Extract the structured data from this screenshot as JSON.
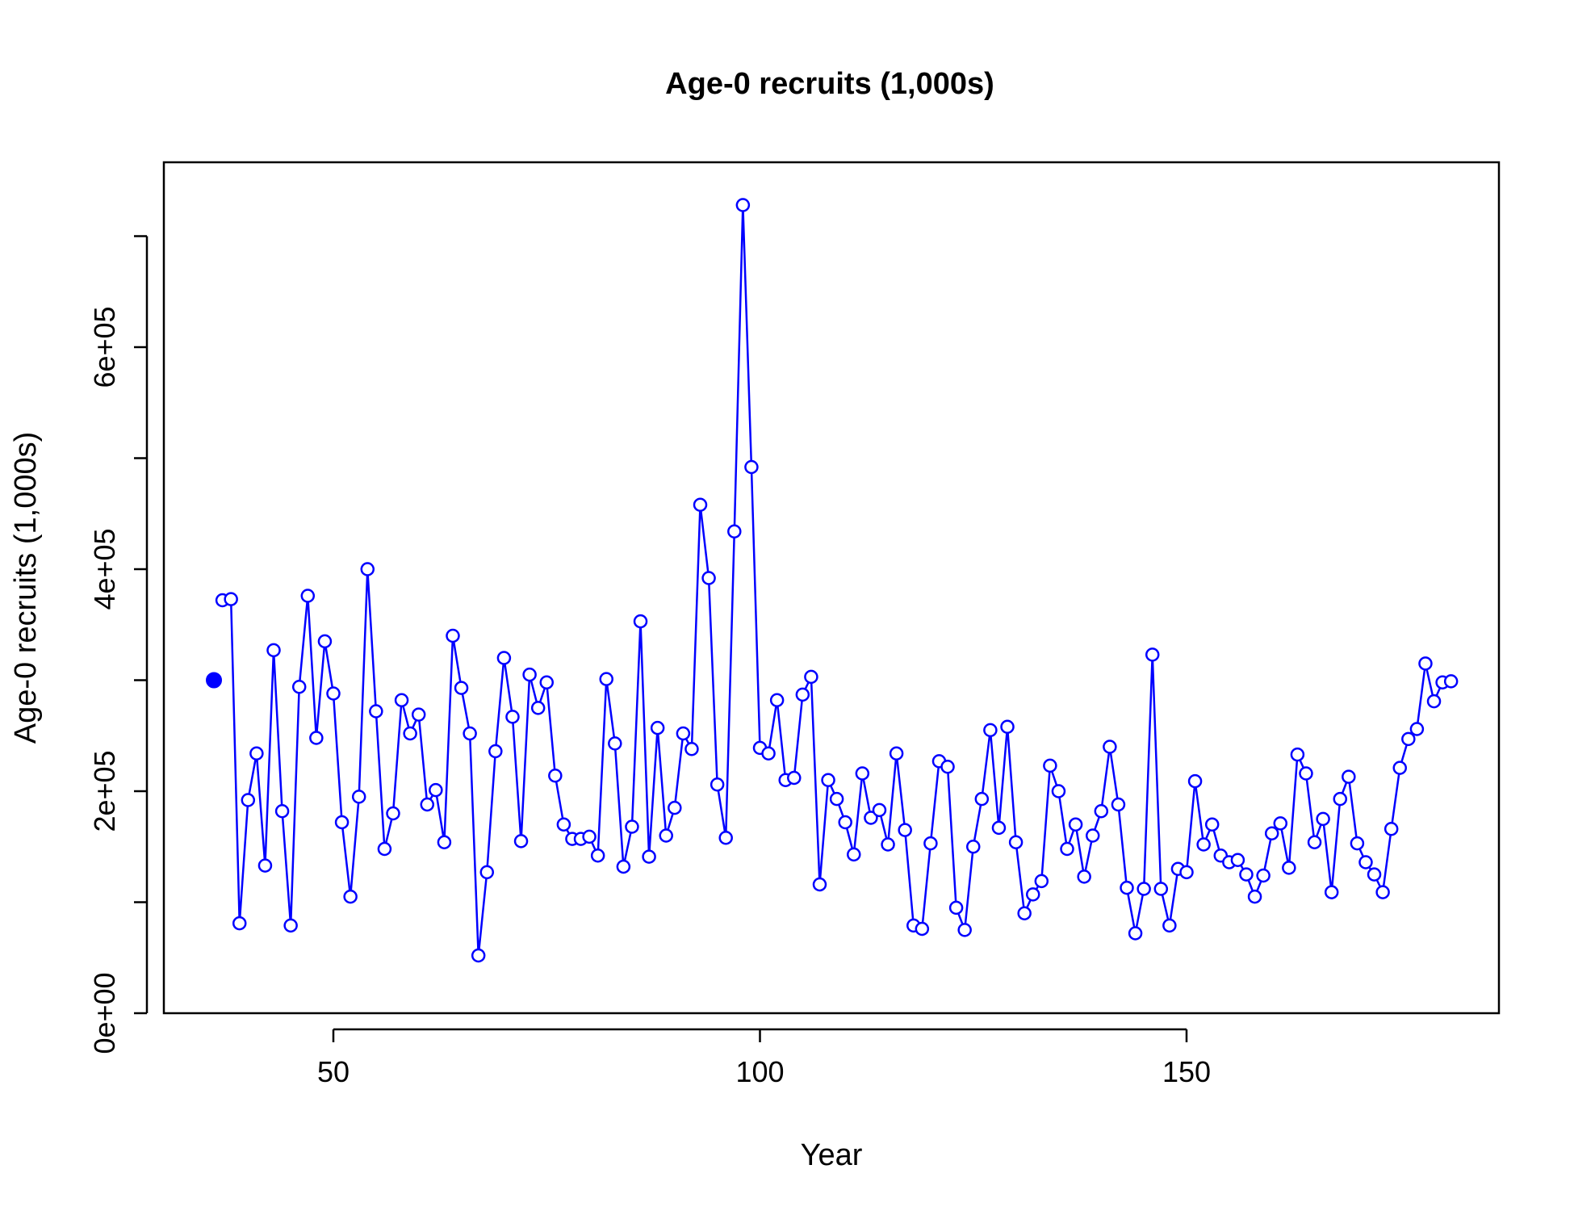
{
  "chart_data": {
    "type": "line",
    "title": "Age-0 recruits (1,000s)",
    "xlabel": "Year",
    "ylabel": "Age-0 recruits (1,000s)",
    "xlim": [
      30,
      187
    ],
    "ylim": [
      0,
      700000
    ],
    "x_ticks": [
      50,
      100,
      150
    ],
    "x_tick_labels": [
      "50",
      "100",
      "150"
    ],
    "y_ticks": [
      0,
      100000,
      200000,
      300000,
      400000,
      500000,
      600000,
      700000
    ],
    "y_tick_labels": [
      "0e+00",
      "",
      "2e+05",
      "",
      "4e+05",
      "",
      "6e+05",
      ""
    ],
    "colors": {
      "series": "#0000ff",
      "axes": "#000000"
    },
    "first_point": {
      "x": 36,
      "y": 300000,
      "style": "filled"
    },
    "series": [
      {
        "marker": "open-circle",
        "x": [
          37,
          38,
          39,
          40,
          41,
          42,
          43,
          44,
          45,
          46,
          47,
          48,
          49,
          50,
          51,
          52,
          53,
          54,
          55,
          56,
          57,
          58,
          59,
          60,
          61,
          62,
          63,
          64,
          65,
          66,
          67,
          68,
          69,
          70,
          71,
          72,
          73,
          74,
          75,
          76,
          77,
          78,
          79,
          80,
          81,
          82,
          83,
          84,
          85,
          86,
          87,
          88,
          89,
          90,
          91,
          92,
          93,
          94,
          95,
          96,
          97,
          98,
          99,
          100,
          101,
          102,
          103,
          104,
          105,
          106,
          107,
          108,
          109,
          110,
          111,
          112,
          113,
          114,
          115,
          116,
          117,
          118,
          119,
          120,
          121,
          122,
          123,
          124,
          125,
          126,
          127,
          128,
          129,
          130,
          131,
          132,
          133,
          134,
          135,
          136,
          137,
          138,
          139,
          140,
          141,
          142,
          143,
          144,
          145,
          146,
          147,
          148,
          149,
          150,
          151,
          152,
          153,
          154,
          155,
          156,
          157,
          158,
          159,
          160,
          161,
          162,
          163,
          164,
          165,
          166,
          167,
          168,
          169,
          170,
          171,
          172,
          173,
          174,
          175,
          176,
          177,
          178,
          179,
          180,
          181
        ],
        "y": [
          372000,
          373000,
          81000,
          192000,
          234000,
          133000,
          327000,
          182000,
          79000,
          294000,
          376000,
          248000,
          335000,
          288000,
          172000,
          105000,
          195000,
          400000,
          272000,
          148000,
          180000,
          282000,
          252000,
          269000,
          188000,
          201000,
          154000,
          340000,
          293000,
          252000,
          52000,
          127000,
          236000,
          320000,
          267000,
          155000,
          305000,
          275000,
          298000,
          214000,
          170000,
          157000,
          157000,
          159000,
          142000,
          301000,
          243000,
          132000,
          168000,
          353000,
          141000,
          257000,
          160000,
          185000,
          252000,
          238000,
          458000,
          392000,
          206000,
          158000,
          434000,
          728000,
          492000,
          239000,
          234000,
          282000,
          210000,
          212000,
          287000,
          303000,
          116000,
          210000,
          193000,
          172000,
          143000,
          216000,
          176000,
          183000,
          152000,
          234000,
          165000,
          79000,
          76000,
          153000,
          227000,
          222000,
          95000,
          75000,
          150000,
          193000,
          255000,
          167000,
          258000,
          154000,
          90000,
          107000,
          119000,
          223000,
          200000,
          148000,
          170000,
          123000,
          160000,
          182000,
          240000,
          188000,
          113000,
          72000,
          112000,
          323000,
          112000,
          79000,
          130000,
          127000,
          209000,
          152000,
          170000,
          142000,
          136000,
          138000,
          125000,
          105000,
          124000,
          162000,
          171000,
          131000,
          233000,
          216000,
          154000,
          175000,
          109000,
          193000,
          213000,
          153000,
          136000,
          125000,
          109000,
          166000,
          221000,
          247000,
          256000,
          315000,
          281000,
          298000,
          299000
        ]
      }
    ]
  }
}
